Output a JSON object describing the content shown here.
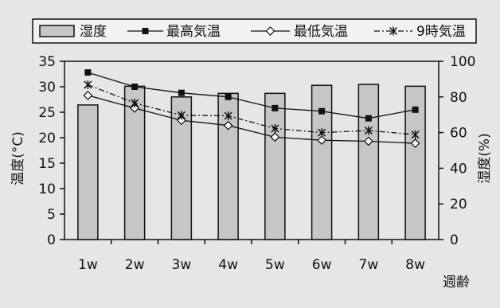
{
  "chart_data": {
    "type": "bar+line",
    "categories": [
      "1w",
      "2w",
      "3w",
      "4w",
      "5w",
      "6w",
      "7w",
      "8w"
    ],
    "xlabel": "週齢",
    "ylabel_left": "温度(°C)",
    "ylabel_right": "湿度(%)",
    "ylim_left": [
      0,
      35
    ],
    "ylim_right": [
      0,
      100
    ],
    "yticks_left": [
      0,
      5,
      10,
      15,
      20,
      25,
      30,
      35
    ],
    "yticks_right": [
      0,
      20,
      40,
      60,
      80,
      100
    ],
    "grid": false,
    "legend_position": "top",
    "series": [
      {
        "name": "湿度",
        "kind": "bar",
        "axis": "right",
        "values": [
          75.5,
          86,
          80,
          82,
          82,
          86.5,
          87,
          86
        ]
      },
      {
        "name": "最高気温",
        "kind": "line",
        "marker": "square",
        "axis": "left",
        "values": [
          32.8,
          30.0,
          28.8,
          28.0,
          25.8,
          25.2,
          23.8,
          25.5
        ]
      },
      {
        "name": "最低気温",
        "kind": "line",
        "marker": "diamond",
        "axis": "left",
        "values": [
          28.3,
          25.8,
          23.4,
          22.4,
          20.1,
          19.5,
          19.3,
          18.9
        ]
      },
      {
        "name": "9時気温",
        "kind": "dashdot",
        "marker": "asterisk",
        "axis": "left",
        "values": [
          30.4,
          26.8,
          24.4,
          24.3,
          21.8,
          21.0,
          21.4,
          20.6
        ]
      }
    ]
  }
}
